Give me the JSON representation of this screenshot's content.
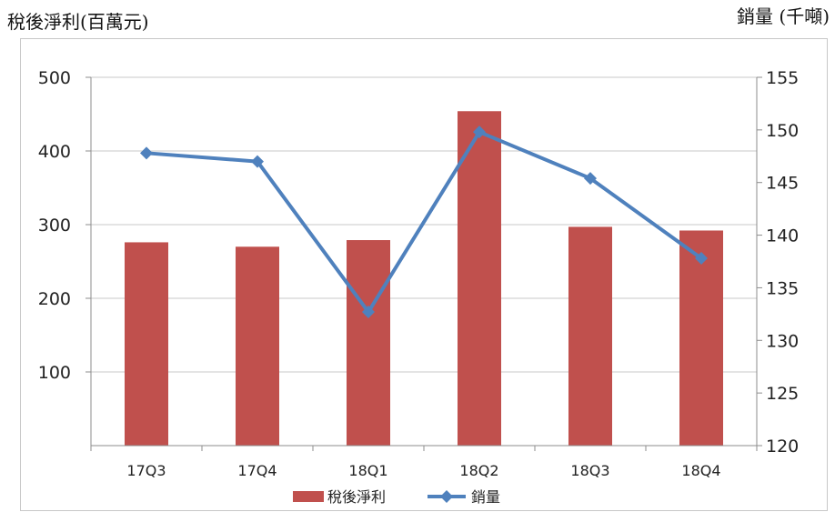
{
  "chart_data": {
    "type": "bar",
    "categories": [
      "17Q3",
      "17Q4",
      "18Q1",
      "18Q2",
      "18Q3",
      "18Q4"
    ],
    "series": [
      {
        "name": "稅後淨利",
        "type": "bar",
        "axis": "left",
        "color": "#c0504d",
        "values": [
          276,
          270,
          279,
          454,
          297,
          292
        ]
      },
      {
        "name": "銷量",
        "type": "line",
        "axis": "right",
        "color": "#4f81bd",
        "values": [
          147.8,
          147.0,
          132.7,
          149.8,
          145.4,
          137.8
        ]
      }
    ],
    "ylabel": "稅後淨利(百萬元)",
    "ylabel_right": "銷量 (千噸)",
    "ylim": [
      0,
      500
    ],
    "ylim_right": [
      120,
      155
    ],
    "yticks_left": [
      "100",
      "200",
      "300",
      "400",
      "500"
    ],
    "yticks_right": [
      "120",
      "125",
      "130",
      "135",
      "140",
      "145",
      "150",
      "155"
    ],
    "grid": true,
    "legend": "bottom"
  }
}
